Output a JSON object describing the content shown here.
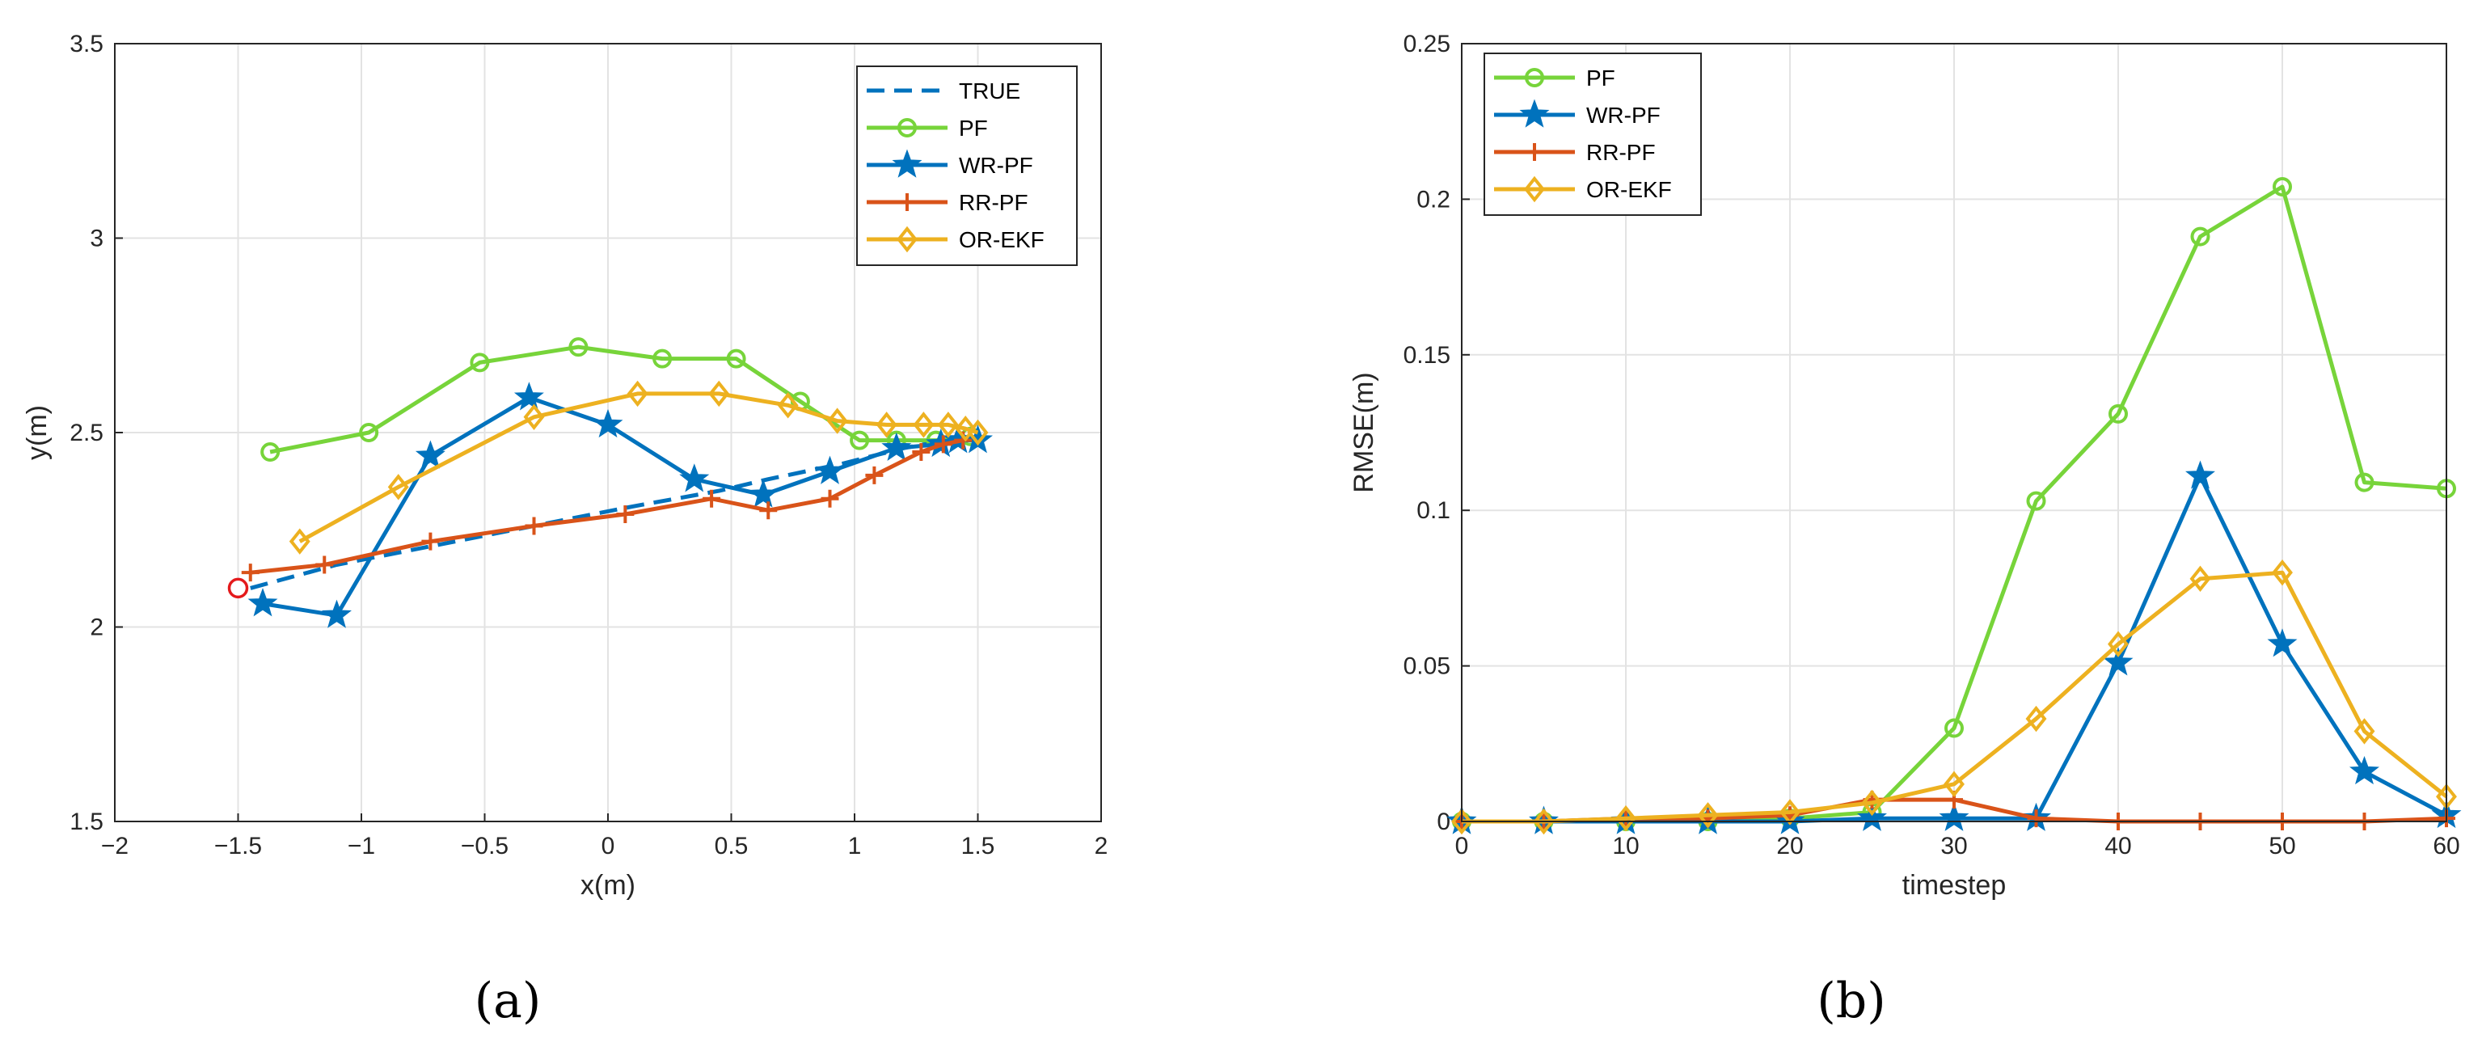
{
  "colors": {
    "TRUE": "#0072BD",
    "PF": "#77D43A",
    "WR-PF": "#0072BD",
    "RR-PF": "#D95319",
    "OR-EKF": "#EDB120",
    "start": "#E41A1C"
  },
  "chart_data": [
    {
      "type": "line",
      "panel_label": "(a)",
      "xlabel": "x(m)",
      "ylabel": "y(m)",
      "xlim": [
        -2,
        2
      ],
      "ylim": [
        1.5,
        3.5
      ],
      "xticks": [
        -2,
        -1.5,
        -1,
        -0.5,
        0,
        0.5,
        1,
        1.5,
        2
      ],
      "xtick_labels": [
        "−2",
        "−1.5",
        "−1",
        "−0.5",
        "0",
        "0.5",
        "1",
        "1.5",
        "2"
      ],
      "yticks": [
        1.5,
        2,
        2.5,
        3,
        3.5
      ],
      "ytick_labels": [
        "1.5",
        "2",
        "2.5",
        "3",
        "3.5"
      ],
      "grid": true,
      "legend_position": "top-right",
      "start_point": [
        -1.5,
        2.1
      ],
      "series": [
        {
          "name": "TRUE",
          "style": "dashed",
          "marker": "none",
          "x": [
            -1.45,
            -1.1,
            -0.7,
            -0.3,
            0.1,
            0.45,
            0.65,
            0.95,
            1.2,
            1.45
          ],
          "y": [
            2.1,
            2.16,
            2.21,
            2.26,
            2.31,
            2.35,
            2.38,
            2.42,
            2.46,
            2.49
          ]
        },
        {
          "name": "PF",
          "style": "solid",
          "marker": "circle",
          "x": [
            -1.37,
            -0.97,
            -0.52,
            -0.12,
            0.22,
            0.52,
            0.78,
            1.02,
            1.17,
            1.33,
            1.47
          ],
          "y": [
            2.45,
            2.5,
            2.68,
            2.72,
            2.69,
            2.69,
            2.58,
            2.48,
            2.48,
            2.48,
            2.49
          ]
        },
        {
          "name": "WR-PF",
          "style": "solid",
          "marker": "star",
          "x": [
            -1.4,
            -1.1,
            -0.72,
            -0.32,
            0.0,
            0.35,
            0.63,
            0.9,
            1.17,
            1.35,
            1.42,
            1.5
          ],
          "y": [
            2.06,
            2.03,
            2.44,
            2.59,
            2.52,
            2.38,
            2.34,
            2.4,
            2.46,
            2.47,
            2.48,
            2.48
          ]
        },
        {
          "name": "RR-PF",
          "style": "solid",
          "marker": "plus",
          "x": [
            -1.45,
            -1.15,
            -0.72,
            -0.3,
            0.07,
            0.42,
            0.65,
            0.9,
            1.08,
            1.27,
            1.36,
            1.44
          ],
          "y": [
            2.14,
            2.16,
            2.22,
            2.26,
            2.29,
            2.33,
            2.3,
            2.33,
            2.39,
            2.45,
            2.47,
            2.48
          ]
        },
        {
          "name": "OR-EKF",
          "style": "solid",
          "marker": "diamond",
          "x": [
            -1.25,
            -0.85,
            -0.3,
            0.12,
            0.45,
            0.73,
            0.93,
            1.13,
            1.28,
            1.38,
            1.45,
            1.5
          ],
          "y": [
            2.22,
            2.36,
            2.54,
            2.6,
            2.6,
            2.57,
            2.53,
            2.52,
            2.52,
            2.52,
            2.51,
            2.5
          ]
        }
      ]
    },
    {
      "type": "line",
      "panel_label": "(b)",
      "xlabel": "timestep",
      "ylabel": "RMSE(m)",
      "xlim": [
        0,
        60
      ],
      "ylim": [
        0,
        0.25
      ],
      "xticks": [
        0,
        10,
        20,
        30,
        40,
        50,
        60
      ],
      "xtick_labels": [
        "0",
        "10",
        "20",
        "30",
        "40",
        "50",
        "60"
      ],
      "yticks": [
        0,
        0.05,
        0.1,
        0.15,
        0.2,
        0.25
      ],
      "ytick_labels": [
        "0",
        "0.05",
        "0.1",
        "0.15",
        "0.2",
        "0.25"
      ],
      "grid": true,
      "legend_position": "top-left",
      "x": [
        0,
        5,
        10,
        15,
        20,
        25,
        30,
        35,
        40,
        45,
        50,
        55,
        60
      ],
      "series": [
        {
          "name": "PF",
          "marker": "circle",
          "values": [
            0,
            0,
            0,
            0,
            0.001,
            0.003,
            0.03,
            0.103,
            0.131,
            0.188,
            0.204,
            0.109,
            0.107
          ]
        },
        {
          "name": "WR-PF",
          "marker": "star",
          "values": [
            0,
            0,
            0,
            0,
            0,
            0.001,
            0.001,
            0.001,
            0.051,
            0.111,
            0.057,
            0.016,
            0.002
          ]
        },
        {
          "name": "RR-PF",
          "marker": "plus",
          "values": [
            0,
            0,
            0.001,
            0.001,
            0.002,
            0.007,
            0.007,
            0.001,
            0,
            0,
            0,
            0,
            0.001
          ]
        },
        {
          "name": "OR-EKF",
          "marker": "diamond",
          "values": [
            0,
            0,
            0.001,
            0.002,
            0.003,
            0.006,
            0.012,
            0.033,
            0.057,
            0.078,
            0.08,
            0.029,
            0.008
          ]
        }
      ]
    }
  ]
}
